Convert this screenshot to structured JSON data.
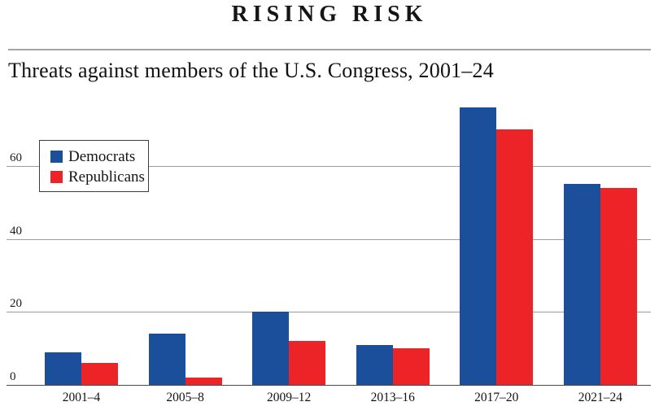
{
  "title": "RISING RISK",
  "subtitle": "Threats against members of the U.S. Congress, 2001–24",
  "colors": {
    "democrats": "#1b4e9b",
    "republicans": "#ed2427",
    "gridline": "#9b9b9b",
    "axis_line": "#4a4a4a",
    "text": "#151515",
    "rule": "#a6a6a6"
  },
  "legend": {
    "items": [
      {
        "label": "Democrats",
        "swatch": "democrats-swatch"
      },
      {
        "label": "Republicans",
        "swatch": "republicans-swatch"
      }
    ]
  },
  "chart_data": {
    "type": "bar",
    "title": "RISING RISK",
    "subtitle": "Threats against members of the U.S. Congress, 2001–24",
    "categories": [
      "2001–4",
      "2005–8",
      "2009–12",
      "2013–16",
      "2017–20",
      "2021–24"
    ],
    "series": [
      {
        "name": "Democrats",
        "color": "#1b4e9b",
        "values": [
          9,
          14,
          20,
          11,
          76,
          55
        ]
      },
      {
        "name": "Republicans",
        "color": "#ed2427",
        "values": [
          6,
          2,
          12,
          10,
          70,
          54
        ]
      }
    ],
    "xlabel": "",
    "ylabel": "",
    "yticks": [
      0,
      20,
      40,
      60
    ],
    "ylim": [
      0,
      79
    ],
    "grid": true,
    "legend_position": "top-left"
  }
}
